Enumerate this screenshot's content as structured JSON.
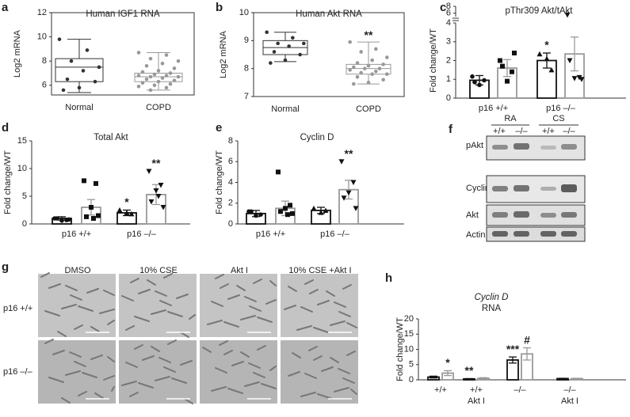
{
  "chart_data": [
    {
      "type": "box",
      "panel": "a",
      "title": "Human IGF1 RNA",
      "y_label": "Log2 mRNA",
      "categories": [
        "Normal",
        "COPD"
      ],
      "colors": [
        "#333333",
        "#999999"
      ],
      "boxes": [
        {
          "min": 5.4,
          "q1": 6.3,
          "median": 7.5,
          "q3": 8.2,
          "max": 9.8
        },
        {
          "min": 5.6,
          "q1": 6.3,
          "median": 6.7,
          "q3": 7.0,
          "max": 8.7
        }
      ],
      "points": [
        [
          9.8,
          8.9,
          8.0,
          7.5,
          7.2,
          6.5,
          6.3,
          5.8,
          5.6
        ],
        [
          8.7,
          8.5,
          8.2,
          8.0,
          7.8,
          7.6,
          7.4,
          7.2,
          7.1,
          7.0,
          6.9,
          6.8,
          6.8,
          6.7,
          6.7,
          6.6,
          6.5,
          6.4,
          6.3,
          6.2,
          6.1,
          6.0,
          5.9,
          5.8,
          5.6
        ]
      ],
      "annotations": [
        null,
        null
      ],
      "ylim": [
        5.2,
        12
      ],
      "yticks": [
        6,
        8,
        10,
        12
      ]
    },
    {
      "type": "box",
      "panel": "b",
      "title": "Human Akt RNA",
      "y_label": "Log2 mRNA",
      "categories": [
        "Normal",
        "COPD"
      ],
      "colors": [
        "#333333",
        "#999999"
      ],
      "boxes": [
        {
          "min": 8.25,
          "q1": 8.5,
          "median": 8.75,
          "q3": 9.0,
          "max": 9.3
        },
        {
          "min": 7.45,
          "q1": 7.8,
          "median": 8.0,
          "q3": 8.15,
          "max": 8.95
        }
      ],
      "points": [
        [
          9.3,
          9.1,
          8.9,
          8.9,
          8.8,
          8.6,
          8.5,
          8.3,
          8.2
        ],
        [
          8.95,
          8.7,
          8.6,
          8.4,
          8.3,
          8.2,
          8.15,
          8.1,
          8.05,
          8.0,
          8.0,
          7.95,
          7.9,
          7.85,
          7.8,
          7.8,
          7.7,
          7.6,
          7.5,
          7.45
        ]
      ],
      "annotations": [
        null,
        "**"
      ],
      "ylim": [
        7,
        10
      ],
      "yticks": [
        7,
        8,
        9,
        10
      ]
    },
    {
      "type": "bar",
      "panel": "c",
      "title": "pThr309 Akt/tAkt",
      "y_label": "Fold change/WT",
      "groups": [
        "p16 +/+",
        "p16 –/–"
      ],
      "values": [
        0.95,
        1.6,
        2.0,
        2.35
      ],
      "errors": [
        0.25,
        0.45,
        0.4,
        0.9
      ],
      "colors": [
        "#111111",
        "#999999",
        "#111111",
        "#999999"
      ],
      "points": [
        [
          1.15,
          0.95,
          0.7,
          0.85
        ],
        [
          2.0,
          1.4,
          0.9,
          1.7,
          2.4
        ],
        [
          2.35,
          1.5,
          2.1
        ],
        [
          5.5,
          1.1,
          1.05,
          2.0,
          1.0
        ]
      ],
      "annotations": [
        null,
        null,
        "*",
        null
      ],
      "ylim": [
        0,
        4
      ],
      "yticks": [
        0,
        1,
        2,
        3,
        4
      ],
      "upper_ylim": [
        5,
        8
      ],
      "upper_yticks": [
        6,
        8
      ]
    },
    {
      "type": "bar",
      "panel": "d",
      "title": "Total Akt",
      "y_label": "Fold change/WT",
      "groups": [
        "p16 +/+",
        "p16 –/–"
      ],
      "values": [
        1.0,
        3.0,
        2.0,
        5.3
      ],
      "errors": [
        0.3,
        1.4,
        0.5,
        1.8
      ],
      "colors": [
        "#111111",
        "#999999",
        "#111111",
        "#999999"
      ],
      "points": [
        [
          1.0,
          0.7,
          0.6,
          1.0,
          0.8
        ],
        [
          7.8,
          7.3,
          3.0,
          1.3,
          1.5,
          1.0
        ],
        [
          2.5,
          1.8,
          2.0
        ],
        [
          9.5,
          7.0,
          6.0,
          4.0,
          3.0,
          5.0
        ]
      ],
      "annotations": [
        null,
        null,
        "*",
        "**"
      ],
      "ylim": [
        0,
        15
      ],
      "yticks": [
        0,
        5,
        10,
        15
      ]
    },
    {
      "type": "bar",
      "panel": "e",
      "title": "Cyclin D",
      "y_label": "Fold change/WT",
      "groups": [
        "p16 +/+",
        "p16 –/–"
      ],
      "values": [
        1.0,
        1.5,
        1.3,
        3.3
      ],
      "errors": [
        0.3,
        0.7,
        0.3,
        0.9
      ],
      "colors": [
        "#111111",
        "#999999",
        "#111111",
        "#999999"
      ],
      "points": [
        [
          1.2,
          0.9,
          0.8,
          1.2
        ],
        [
          5.0,
          1.8,
          1.5,
          1.2,
          1.0,
          0.9
        ],
        [
          1.5,
          1.3,
          1.1
        ],
        [
          6.0,
          4.0,
          3.0,
          2.5,
          1.5
        ]
      ],
      "annotations": [
        null,
        null,
        null,
        "**"
      ],
      "ylim": [
        0,
        8
      ],
      "yticks": [
        0,
        2,
        4,
        6,
        8
      ]
    },
    {
      "type": "bar",
      "panel": "h",
      "title": "Cyclin D",
      "subtitle": "RNA",
      "y_label": "Fold change/WT",
      "groups": [
        "+/+",
        "+/+",
        "–/–",
        "–/–"
      ],
      "group_sublabels": [
        null,
        "Akt I",
        null,
        "Akt I"
      ],
      "values": [
        0.9,
        2.2,
        0.3,
        0.5,
        6.5,
        8.5,
        0.4,
        0.4
      ],
      "errors": [
        0.3,
        0.8,
        0.1,
        0.2,
        1.0,
        2.0,
        0.1,
        0.1
      ],
      "colors": [
        "#111111",
        "#999999",
        "#111111",
        "#999999",
        "#111111",
        "#999999",
        "#111111",
        "#999999"
      ],
      "annotations": [
        null,
        "*",
        "**",
        null,
        "***",
        "#",
        null,
        null
      ],
      "ylim": [
        0,
        20
      ],
      "yticks": [
        0,
        5,
        10,
        15,
        20
      ]
    }
  ],
  "blot": {
    "panel": "f",
    "conditions": [
      "RA",
      "CS"
    ],
    "genotypes": [
      "+/+",
      "–/–",
      "+/+",
      "–/–"
    ],
    "proteins": [
      "pAkt",
      "Cyclin D",
      "Akt",
      "Actin"
    ]
  },
  "micrographs": {
    "panel": "g",
    "treatments": [
      "DMSO",
      "10% CSE",
      "Akt I",
      "10% CSE +Akt I"
    ],
    "genotypes": [
      "p16 +/+",
      "p16 –/–"
    ]
  }
}
